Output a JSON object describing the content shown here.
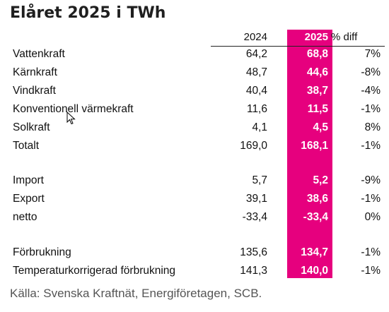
{
  "title": "Elåret 2025 i TWh",
  "headers": {
    "y2024": "2024",
    "y2025": "2025",
    "diff": "% diff"
  },
  "rows": [
    {
      "label": "Vattenkraft",
      "v2024": "64,2",
      "v2025": "68,8",
      "diff": "7%"
    },
    {
      "label": "Kärnkraft",
      "v2024": "48,7",
      "v2025": "44,6",
      "diff": "-8%"
    },
    {
      "label": "Vindkraft",
      "v2024": "40,4",
      "v2025": "38,7",
      "diff": "-4%"
    },
    {
      "label": "Konventionell värmekraft",
      "v2024": "11,6",
      "v2025": "11,5",
      "diff": "-1%"
    },
    {
      "label": "Solkraft",
      "v2024": "4,1",
      "v2025": "4,5",
      "diff": "8%"
    },
    {
      "label": "Totalt",
      "v2024": "169,0",
      "v2025": "168,1",
      "diff": "-1%"
    },
    {
      "label": "Import",
      "v2024": "5,7",
      "v2025": "5,2",
      "diff": "-9%"
    },
    {
      "label": "Export",
      "v2024": "39,1",
      "v2025": "38,6",
      "diff": "-1%"
    },
    {
      "label": "netto",
      "v2024": "-33,4",
      "v2025": "-33,4",
      "diff": "0%"
    },
    {
      "label": "Förbrukning",
      "v2024": "135,6",
      "v2025": "134,7",
      "diff": "-1%"
    },
    {
      "label": "Temperaturkorrigerad förbrukning",
      "v2024": "141,3",
      "v2025": "140,0",
      "diff": "-1%"
    }
  ],
  "source": "Källa: Svenska Kraftnät, Energiföretagen, SCB.",
  "colors": {
    "highlight": "#e6007e"
  },
  "icons": {
    "cursor": "mouse-pointer-icon"
  }
}
